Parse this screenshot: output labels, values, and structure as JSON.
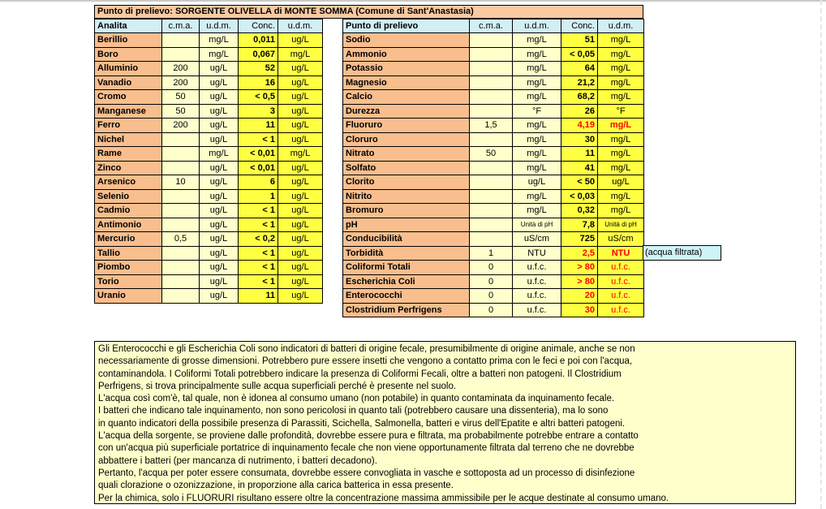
{
  "title": "Punto di prelievo: SORGENTE OLIVELLA di MONTE SOMMA (Comune di Sant'Anastasia)",
  "filtered_note": "(acqua filtrata)",
  "colors": {
    "peach": "#fbc9a0",
    "salmon": "#f9be8d",
    "cream": "#ffffcb",
    "yellow": "#ffff42",
    "cyan": "#d2eff3",
    "notecyan": "#cff4f8",
    "red": "#ff0000"
  },
  "left_table": {
    "headers": [
      "Analita",
      "c.m.a.",
      "u.d.m.",
      "Conc.",
      "u.d.m."
    ],
    "rows": [
      {
        "name": "Berillio",
        "cma": "",
        "udm": "mg/L",
        "conc": "0,011",
        "udm2": "ug/L"
      },
      {
        "name": "Boro",
        "cma": "",
        "udm": "mg/L",
        "conc": "0,067",
        "udm2": "mg/L"
      },
      {
        "name": "Alluminio",
        "cma": "200",
        "udm": "ug/L",
        "conc": "52",
        "udm2": "ug/L"
      },
      {
        "name": "Vanadio",
        "cma": "200",
        "udm": "ug/L",
        "conc": "16",
        "udm2": "ug/L"
      },
      {
        "name": "Cromo",
        "cma": "50",
        "udm": "ug/L",
        "conc": "< 0,5",
        "udm2": "ug/L"
      },
      {
        "name": "Manganese",
        "cma": "50",
        "udm": "ug/L",
        "conc": "3",
        "udm2": "ug/L"
      },
      {
        "name": "Ferro",
        "cma": "200",
        "udm": "ug/L",
        "conc": "11",
        "udm2": "ug/L"
      },
      {
        "name": "Nichel",
        "cma": "",
        "udm": "ug/L",
        "conc": "< 1",
        "udm2": "ug/L"
      },
      {
        "name": "Rame",
        "cma": "",
        "udm": "mg/L",
        "conc": "< 0,01",
        "udm2": "mg/L"
      },
      {
        "name": "Zinco",
        "cma": "",
        "udm": "ug/L",
        "conc": "< 0,01",
        "udm2": "ug/L"
      },
      {
        "name": "Arsenico",
        "cma": "10",
        "udm": "ug/L",
        "conc": "6",
        "udm2": "ug/L"
      },
      {
        "name": "Selenio",
        "cma": "",
        "udm": "ug/L",
        "conc": "1",
        "udm2": "ug/L"
      },
      {
        "name": "Cadmio",
        "cma": "",
        "udm": "ug/L",
        "conc": "< 1",
        "udm2": "ug/L"
      },
      {
        "name": "Antimonio",
        "cma": "",
        "udm": "ug/L",
        "conc": "< 1",
        "udm2": "ug/L"
      },
      {
        "name": "Mercurio",
        "cma": "0,5",
        "udm": "ug/L",
        "conc": "< 0,2",
        "udm2": "ug/L"
      },
      {
        "name": "Tallio",
        "cma": "",
        "udm": "ug/L",
        "conc": "< 1",
        "udm2": "ug/L"
      },
      {
        "name": "Piombo",
        "cma": "",
        "udm": "ug/L",
        "conc": "< 1",
        "udm2": "ug/L"
      },
      {
        "name": "Torio",
        "cma": "",
        "udm": "ug/L",
        "conc": "< 1",
        "udm2": "ug/L"
      },
      {
        "name": "Uranio",
        "cma": "",
        "udm": "ug/L",
        "conc": "11",
        "udm2": "ug/L"
      }
    ]
  },
  "right_table": {
    "headers": [
      "Punto di prelievo",
      "c.m.a.",
      "u.d.m.",
      "Conc.",
      "u.d.m."
    ],
    "rows": [
      {
        "name": "Sodio",
        "cma": "",
        "udm": "mg/L",
        "conc": "51",
        "udm2": "mg/L"
      },
      {
        "name": "Ammonio",
        "cma": "",
        "udm": "mg/L",
        "conc": "< 0,05",
        "udm2": "mg/L"
      },
      {
        "name": "Potassio",
        "cma": "",
        "udm": "mg/L",
        "conc": "64",
        "udm2": "mg/L"
      },
      {
        "name": "Magnesio",
        "cma": "",
        "udm": "mg/L",
        "conc": "21,2",
        "udm2": "mg/L"
      },
      {
        "name": "Calcio",
        "cma": "",
        "udm": "mg/L",
        "conc": "68,2",
        "udm2": "mg/L"
      },
      {
        "name": "Durezza",
        "cma": "",
        "udm": "°F",
        "conc": "26",
        "udm2": "°F"
      },
      {
        "name": "Fluoruro",
        "cma": "1,5",
        "udm": "mg/L",
        "conc": "4,19",
        "udm2": "mg/L",
        "alert": "strong"
      },
      {
        "name": "Cloruro",
        "cma": "",
        "udm": "mg/L",
        "conc": "30",
        "udm2": "mg/L"
      },
      {
        "name": "Nitrato",
        "cma": "50",
        "udm": "mg/L",
        "conc": "11",
        "udm2": "mg/L"
      },
      {
        "name": "Solfato",
        "cma": "",
        "udm": "mg/L",
        "conc": "41",
        "udm2": "mg/L"
      },
      {
        "name": "Clorito",
        "cma": "",
        "udm": "ug/L",
        "conc": "< 50",
        "udm2": "ug/L"
      },
      {
        "name": "Nitrito",
        "cma": "",
        "udm": "mg/L",
        "conc": "< 0,03",
        "udm2": "mg/L"
      },
      {
        "name": "Bromuro",
        "cma": "",
        "udm": "mg/L",
        "conc": "0,32",
        "udm2": "mg/L"
      },
      {
        "name": "pH",
        "cma": "",
        "udm": "Unità di pH",
        "conc": "7,8",
        "udm2": "Unità di pH"
      },
      {
        "name": "Conducibilità",
        "cma": "",
        "udm": "uS/cm",
        "conc": "725",
        "udm2": "uS/cm"
      },
      {
        "name": "Torbidità",
        "cma": "1",
        "udm": "NTU",
        "conc": "2,5",
        "udm2": "NTU",
        "alert": "strong"
      },
      {
        "name": "Coliformi Totali",
        "cma": "0",
        "udm": "u.f.c.",
        "conc": "> 80",
        "udm2": "u.f.c.",
        "alert": "light"
      },
      {
        "name": "Escherichia Coli",
        "cma": "0",
        "udm": "u.f.c.",
        "conc": "> 80",
        "udm2": "u.f.c.",
        "alert": "light"
      },
      {
        "name": "Enterococchi",
        "cma": "0",
        "udm": "u.f.c.",
        "conc": "20",
        "udm2": "u.f.c.",
        "alert": "light"
      },
      {
        "name": "Clostridium Perfrigens",
        "cma": "0",
        "udm": "u.f.c.",
        "conc": "30",
        "udm2": "u.f.c.",
        "alert": "light"
      }
    ]
  },
  "notes": [
    "Gli Enterococchi e gli Escherichia Coli sono indicatori di batteri di origine fecale, presumibilmente di origine animale, anche se non",
    "necessariamente di grosse dimensioni. Potrebbero pure essere insetti che vengono a contatto prima con le feci e poi con l'acqua,",
    "contaminandola. I Coliformi Totali potrebbero indicare la presenza di Coliformi Fecali, oltre a batteri non patogeni. Il Clostridium",
    "Perfrigens, si trova principalmente sulle acqua superficiali perché è presente nel suolo.",
    "L'acqua così com'è, tal quale, non è idonea al consumo umano (non potabile) in quanto contaminata da inquinamento fecale.",
    "I batteri che indicano tale inquinamento, non sono pericolosi in quanto tali (potrebbero causare una dissenteria), ma lo sono",
    "in quanto indicatori della possibile presenza di Parassiti, Scichella, Salmonella, batteri e virus dell'Epatite e altri batteri patogeni.",
    "L'acqua della sorgente, se proviene dalle profondità, dovrebbe essere pura e filtrata, ma probabilmente potrebbe entrare a contatto",
    "con un'acqua più superficiale portatrice di inquinamento fecale che non viene opportunamente filtrata dal terreno che ne dovrebbe",
    "abbattere i batteri (per mancanza di nutrimento, i batteri decadono).",
    "Pertanto, l'acqua per poter essere consumata, dovrebbe essere convogliata in vasche e sottoposta ad un processo di disinfezione",
    "quali clorazione o ozonizzazione, in proporzione alla carica batterica in essa presente.",
    "Per la chimica, solo i FLUORURI risultano essere oltre la concentrazione massima ammissibile per le acque destinate al consumo umano."
  ]
}
